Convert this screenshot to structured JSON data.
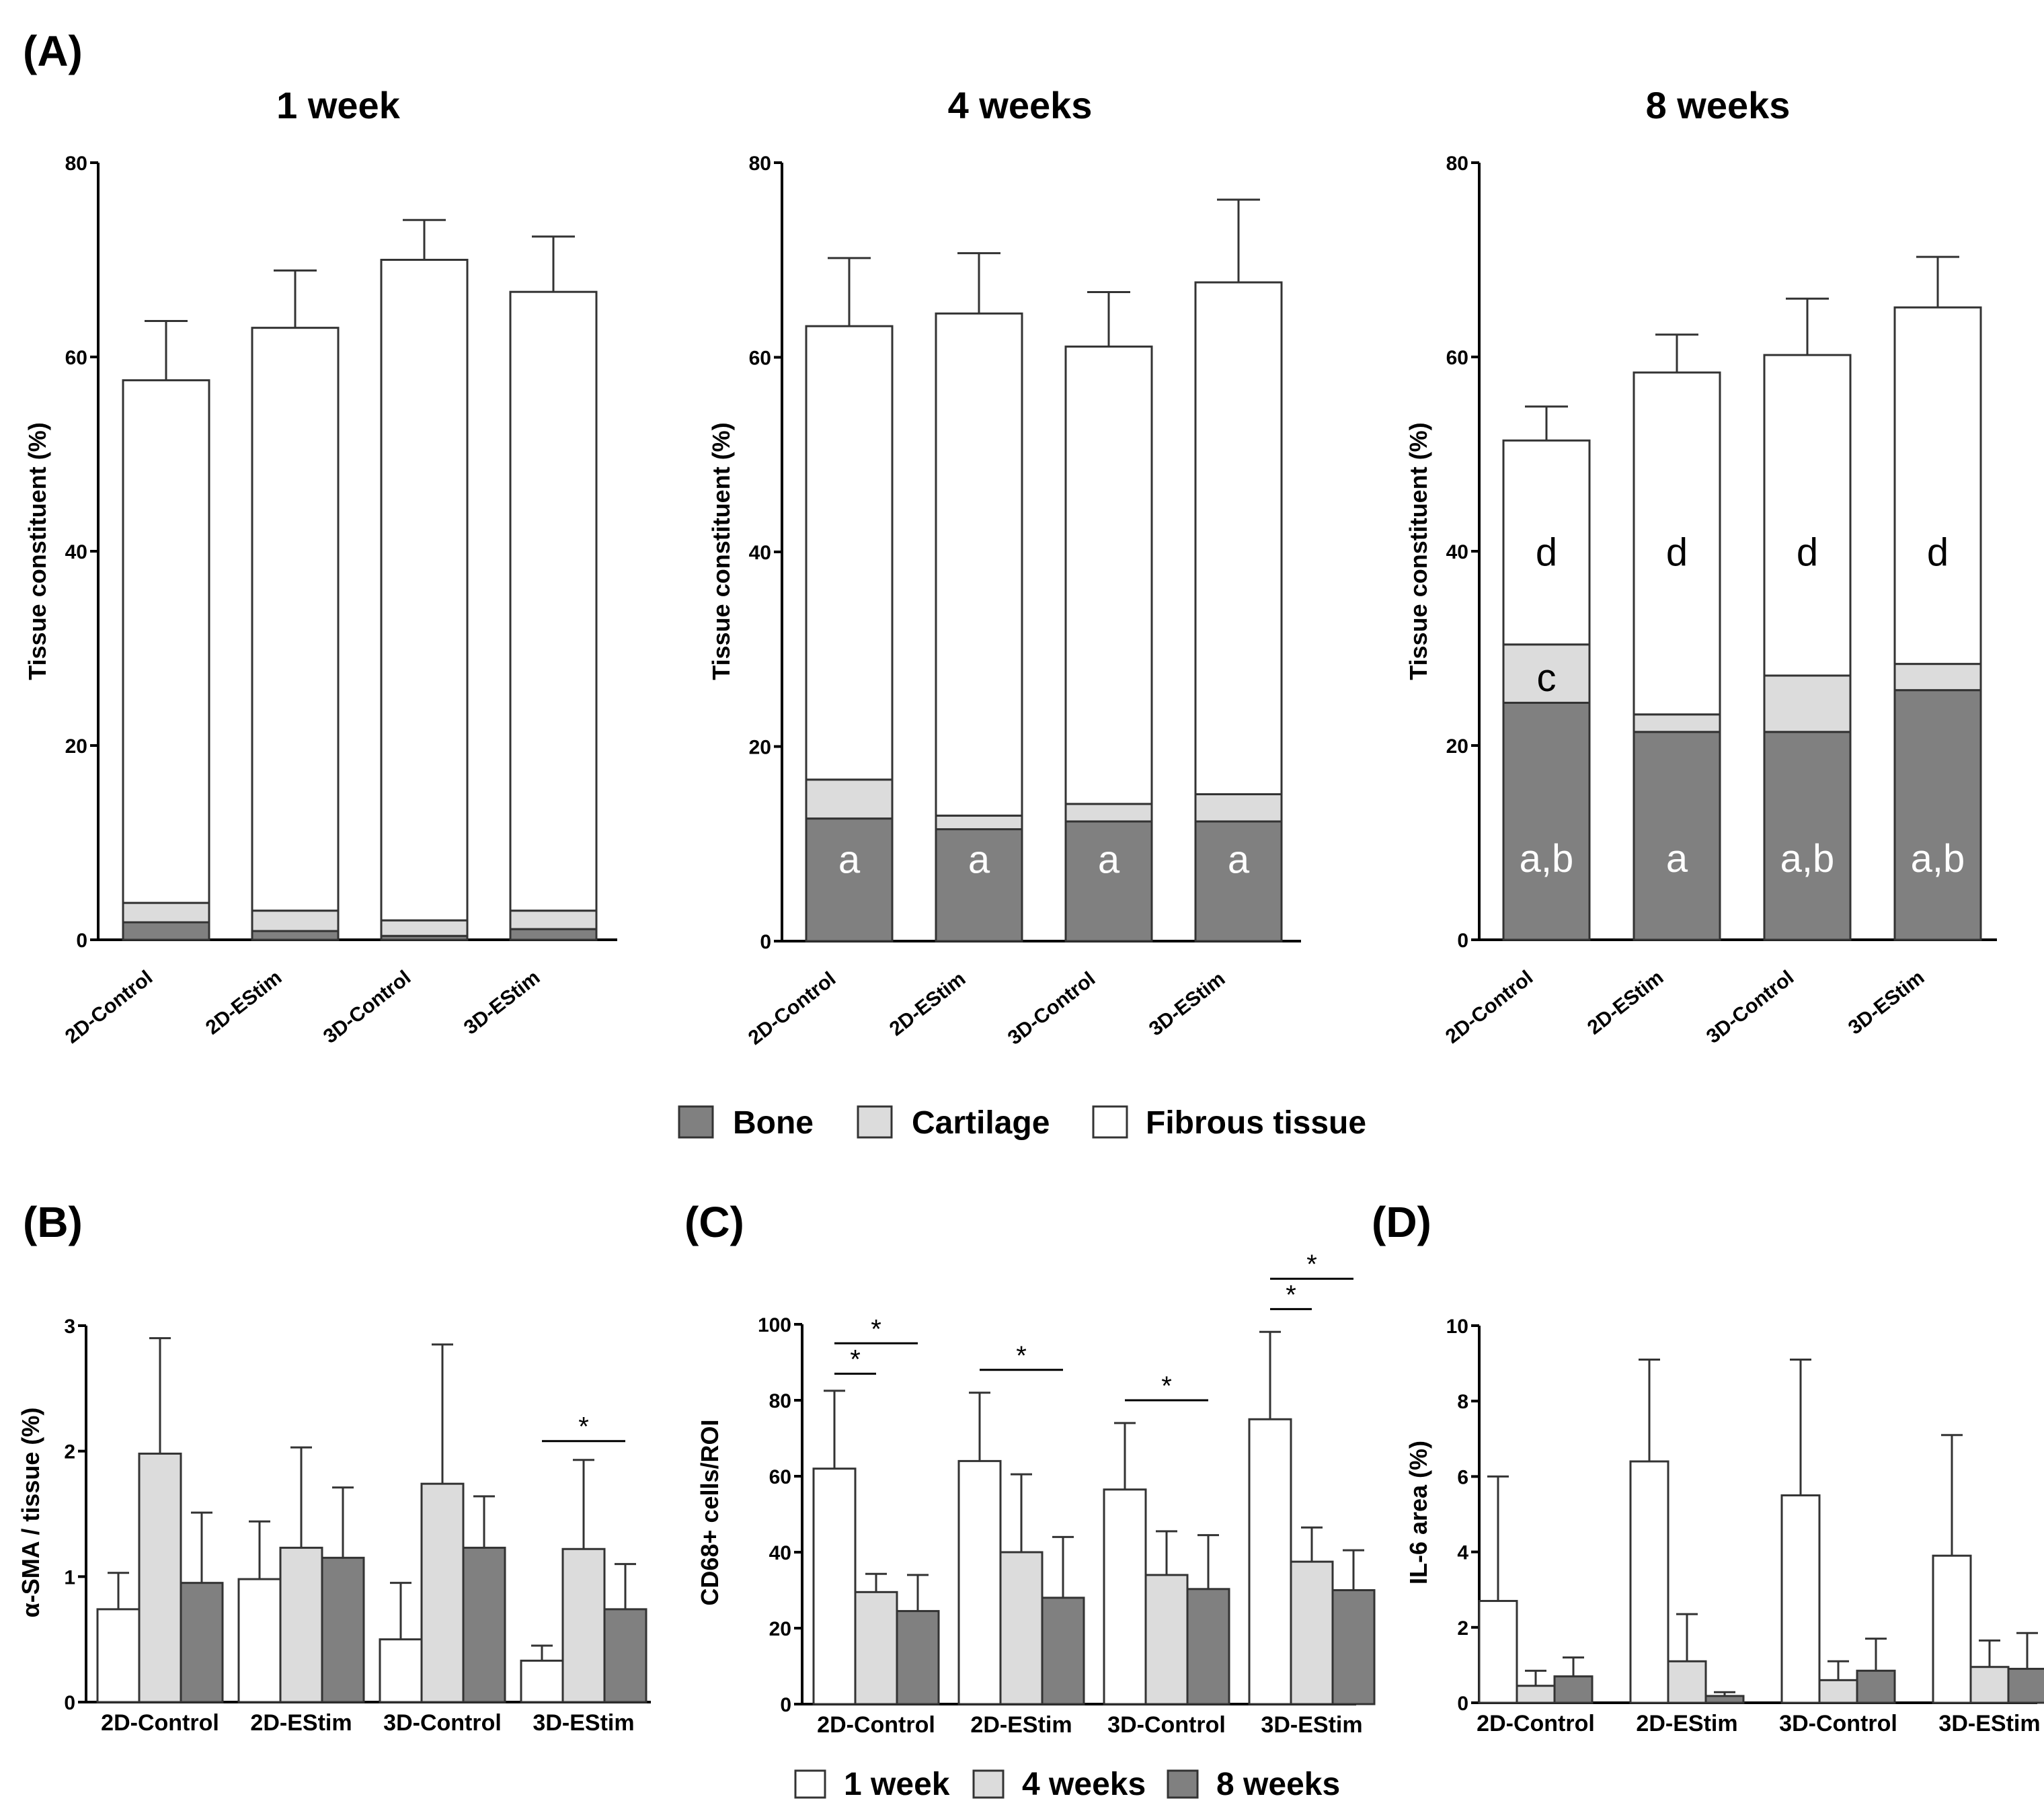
{
  "panel_labels": [
    "(A)",
    "(B)",
    "(C)",
    "(D)"
  ],
  "colors": {
    "bone": "#808080",
    "cartilage": "#dcdcdc",
    "fibrous": "#ffffff",
    "week1": "#ffffff",
    "week4": "#dcdcdc",
    "week8": "#808080"
  },
  "legend_a": [
    "Bone",
    "Cartilage",
    "Fibrous tissue"
  ],
  "legend_c": [
    "1 week",
    "4 weeks",
    "8 weeks"
  ],
  "chart_data": [
    {
      "id": "A1",
      "type": "bar",
      "stacked": true,
      "title": "1 week",
      "ylabel": "Tissue constituent (%)",
      "ylim": [
        0,
        80
      ],
      "yticks": [
        0,
        20,
        40,
        60,
        80
      ],
      "categories": [
        "2D-Control",
        "2D-EStim",
        "3D-Control",
        "3D-EStim"
      ],
      "series": [
        {
          "name": "Bone",
          "values": [
            1.8,
            0.9,
            0.4,
            1.1
          ],
          "errors": [
            0.6,
            0.4,
            0.2,
            0.5
          ]
        },
        {
          "name": "Cartilage",
          "values": [
            2.0,
            2.1,
            1.6,
            1.9
          ],
          "errors": [
            0.5,
            0.5,
            0.3,
            0.5
          ]
        },
        {
          "name": "Fibrous tissue",
          "values": [
            53.8,
            60.0,
            68.0,
            63.7
          ],
          "errors": [
            6.1,
            5.9,
            4.1,
            5.7
          ]
        }
      ],
      "annotations": []
    },
    {
      "id": "A2",
      "type": "bar",
      "stacked": true,
      "title": "4 weeks",
      "ylabel": "Tissue constituent (%)",
      "ylim": [
        0,
        80
      ],
      "yticks": [
        0,
        20,
        40,
        60,
        80
      ],
      "categories": [
        "2D-Control",
        "2D-EStim",
        "3D-Control",
        "3D-EStim"
      ],
      "series": [
        {
          "name": "Bone",
          "values": [
            12.6,
            11.5,
            12.3,
            12.3
          ],
          "errors": [
            2.1,
            1.1,
            1.4,
            0.8
          ]
        },
        {
          "name": "Cartilage",
          "values": [
            4.0,
            1.4,
            1.8,
            2.8
          ],
          "errors": [
            0.6,
            0.4,
            0.3,
            0.9
          ]
        },
        {
          "name": "Fibrous tissue",
          "values": [
            46.6,
            51.6,
            47.0,
            52.6
          ],
          "errors": [
            7.0,
            6.2,
            5.6,
            8.5
          ]
        }
      ],
      "annotations": [
        {
          "series": "Bone",
          "labels": [
            "a",
            "a",
            "a",
            "a"
          ]
        }
      ]
    },
    {
      "id": "A3",
      "type": "bar",
      "stacked": true,
      "title": "8 weeks",
      "ylabel": "Tissue constituent (%)",
      "ylim": [
        0,
        80
      ],
      "yticks": [
        0,
        20,
        40,
        60,
        80
      ],
      "categories": [
        "2D-Control",
        "2D-EStim",
        "3D-Control",
        "3D-EStim"
      ],
      "series": [
        {
          "name": "Bone",
          "values": [
            24.4,
            21.4,
            21.4,
            25.7
          ],
          "errors": [
            2.5,
            0.5,
            1.6,
            0.6
          ]
        },
        {
          "name": "Cartilage",
          "values": [
            6.0,
            1.8,
            5.8,
            2.7
          ],
          "errors": [
            1.0,
            0.4,
            1.6,
            0.9
          ]
        },
        {
          "name": "Fibrous tissue",
          "values": [
            21.0,
            35.2,
            33.0,
            36.7
          ],
          "errors": [
            3.5,
            3.9,
            5.8,
            5.2
          ]
        }
      ],
      "annotations": [
        {
          "series": "Bone",
          "labels": [
            "a,b",
            "a",
            "a,b",
            "a,b"
          ]
        },
        {
          "series": "Cartilage",
          "labels": [
            "c",
            "",
            "",
            ""
          ]
        },
        {
          "series": "Fibrous tissue",
          "labels": [
            "d",
            "d",
            "d",
            "d"
          ]
        }
      ]
    },
    {
      "id": "B",
      "type": "bar",
      "stacked": false,
      "ylabel": "α-SMA / tissue (%)",
      "ylim": [
        0,
        3
      ],
      "yticks": [
        0,
        1,
        2,
        3
      ],
      "categories": [
        "2D-Control",
        "2D-EStim",
        "3D-Control",
        "3D-EStim"
      ],
      "series": [
        {
          "name": "1 week",
          "values": [
            0.74,
            0.98,
            0.5,
            0.33
          ],
          "errors": [
            0.29,
            0.46,
            0.45,
            0.12
          ]
        },
        {
          "name": "4 weeks",
          "values": [
            1.98,
            1.23,
            1.74,
            1.22
          ],
          "errors": [
            0.92,
            0.8,
            1.11,
            0.71
          ]
        },
        {
          "name": "8 weeks",
          "values": [
            0.95,
            1.15,
            1.23,
            0.74
          ],
          "errors": [
            0.56,
            0.56,
            0.41,
            0.36
          ]
        }
      ],
      "significance": [
        {
          "label": "*",
          "category": "3D-EStim",
          "from": "1 week",
          "to": "8 weeks",
          "y": 2.08
        }
      ]
    },
    {
      "id": "C",
      "type": "bar",
      "stacked": false,
      "ylabel": "CD68+ cells/ROI",
      "ylim": [
        0,
        100
      ],
      "yticks": [
        0,
        20,
        40,
        60,
        80,
        100
      ],
      "categories": [
        "2D-Control",
        "2D-EStim",
        "3D-Control",
        "3D-EStim"
      ],
      "series": [
        {
          "name": "1 week",
          "values": [
            62,
            64,
            56.5,
            75
          ],
          "errors": [
            20.5,
            18,
            17.5,
            23
          ]
        },
        {
          "name": "4 weeks",
          "values": [
            29.5,
            40,
            34,
            37.5
          ],
          "errors": [
            4.8,
            20.5,
            11.5,
            9
          ]
        },
        {
          "name": "8 weeks",
          "values": [
            24.5,
            28,
            30.3,
            30
          ],
          "errors": [
            9.5,
            16,
            14.2,
            10.5
          ]
        }
      ],
      "significance": [
        {
          "label": "*",
          "category": "2D-Control",
          "from": "1 week",
          "to": "4 weeks",
          "y": 87
        },
        {
          "label": "*",
          "category": "2D-Control",
          "from": "1 week",
          "to": "8 weeks",
          "y": 95
        },
        {
          "label": "*",
          "category": "2D-EStim",
          "from": "1 week",
          "to": "8 weeks",
          "y": 88
        },
        {
          "label": "*",
          "category": "3D-Control",
          "from": "1 week",
          "to": "8 weeks",
          "y": 80
        },
        {
          "label": "*",
          "category": "3D-EStim",
          "from": "1 week",
          "to": "4 weeks",
          "y": 104
        },
        {
          "label": "*",
          "category": "3D-EStim",
          "from": "1 week",
          "to": "8 weeks",
          "y": 112
        }
      ]
    },
    {
      "id": "D",
      "type": "bar",
      "stacked": false,
      "ylabel": "IL-6 area (%)",
      "ylim": [
        0,
        10
      ],
      "yticks": [
        0,
        2,
        4,
        6,
        8,
        10
      ],
      "categories": [
        "2D-Control",
        "2D-EStim",
        "3D-Control",
        "3D-EStim"
      ],
      "series": [
        {
          "name": "1 week",
          "values": [
            2.7,
            6.4,
            5.5,
            3.9
          ],
          "errors": [
            3.3,
            2.7,
            3.6,
            3.2
          ]
        },
        {
          "name": "4 weeks",
          "values": [
            0.45,
            1.1,
            0.6,
            0.95
          ],
          "errors": [
            0.4,
            1.25,
            0.5,
            0.7
          ]
        },
        {
          "name": "8 weeks",
          "values": [
            0.7,
            0.18,
            0.85,
            0.9
          ],
          "errors": [
            0.5,
            0.1,
            0.85,
            0.95
          ]
        }
      ],
      "significance": []
    }
  ]
}
